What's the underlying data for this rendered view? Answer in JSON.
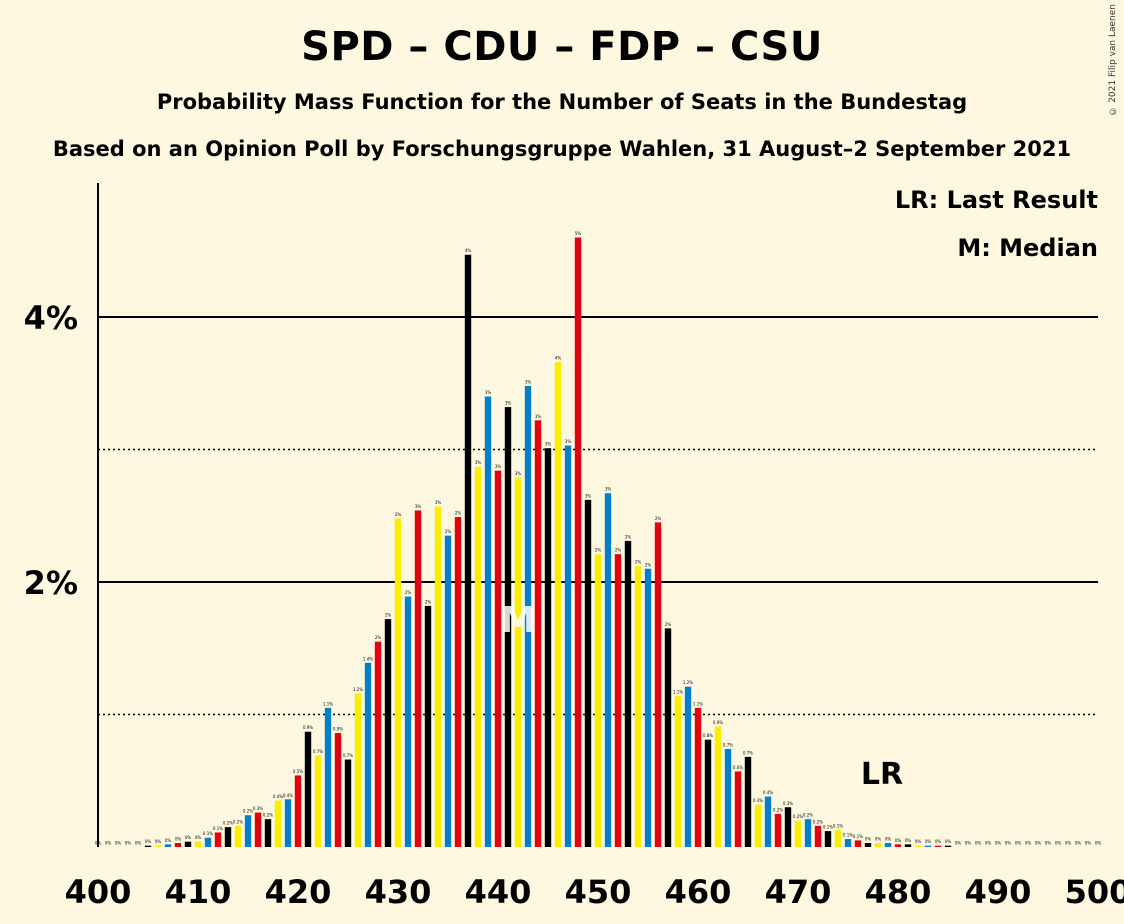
{
  "title": "SPD – CDU – FDP – CSU",
  "subtitle": "Probability Mass Function for the Number of Seats in the Bundestag",
  "subtitle2": "Based on an Opinion Poll by Forschungsgruppe Wahlen, 31 August–2 September 2021",
  "copyright": "© 2021 Filip van Laenen",
  "legend": {
    "last_result": "LR: Last Result",
    "median": "M: Median"
  },
  "markers": {
    "lr_label": "LR",
    "median_label": "M",
    "median_seat": 442,
    "lr_seat": 479
  },
  "colors": {
    "spd": "#E3000F",
    "cdu": "#000000",
    "fdp": "#FFED00",
    "csu": "#0080C8"
  },
  "chart_data": {
    "type": "bar",
    "xlabel": "",
    "ylabel": "",
    "xlim": [
      400,
      500
    ],
    "ylim": [
      0,
      5
    ],
    "x_ticks": [
      400,
      410,
      420,
      430,
      440,
      450,
      460,
      470,
      480,
      490,
      500
    ],
    "y_ticks_labeled": [
      {
        "value": 2,
        "label": "2%"
      },
      {
        "value": 4,
        "label": "4%"
      }
    ],
    "y_minor_dotted": [
      1,
      3
    ],
    "seats": [
      400,
      401,
      402,
      403,
      404,
      405,
      406,
      407,
      408,
      409,
      410,
      411,
      412,
      413,
      414,
      415,
      416,
      417,
      418,
      419,
      420,
      421,
      422,
      423,
      424,
      425,
      426,
      427,
      428,
      429,
      430,
      431,
      432,
      433,
      434,
      435,
      436,
      437,
      438,
      439,
      440,
      441,
      442,
      443,
      444,
      445,
      446,
      447,
      448,
      449,
      450,
      451,
      452,
      453,
      454,
      455,
      456,
      457,
      458,
      459,
      460,
      461,
      462,
      463,
      464,
      465,
      466,
      467,
      468,
      469,
      470,
      471,
      472,
      473,
      474,
      475,
      476,
      477,
      478,
      479,
      480,
      481,
      482,
      483,
      484,
      485,
      486,
      487,
      488,
      489,
      490,
      491,
      492,
      493,
      494,
      495,
      496,
      497,
      498,
      499,
      500
    ],
    "values": [
      0,
      0,
      0,
      0,
      0,
      0.01,
      0.01,
      0.02,
      0.03,
      0.04,
      0.04,
      0.07,
      0.11,
      0.15,
      0.16,
      0.24,
      0.26,
      0.21,
      0.35,
      0.36,
      0.54,
      0.87,
      0.69,
      1.05,
      0.86,
      0.66,
      1.16,
      1.39,
      1.55,
      1.72,
      2.48,
      1.89,
      2.54,
      1.82,
      2.57,
      2.35,
      2.49,
      4.47,
      2.87,
      3.4,
      2.84,
      3.32,
      2.79,
      3.48,
      3.22,
      3.01,
      3.66,
      3.03,
      4.6,
      2.62,
      2.21,
      2.67,
      2.21,
      2.31,
      2.12,
      2.1,
      2.45,
      1.65,
      1.14,
      1.21,
      1.05,
      0.81,
      0.91,
      0.74,
      0.57,
      0.68,
      0.32,
      0.38,
      0.25,
      0.3,
      0.2,
      0.21,
      0.16,
      0.12,
      0.13,
      0.06,
      0.05,
      0.03,
      0.03,
      0.03,
      0.02,
      0.02,
      0.01,
      0.01,
      0.01,
      0.01,
      0,
      0,
      0,
      0,
      0,
      0,
      0,
      0,
      0,
      0,
      0,
      0,
      0,
      0,
      0
    ],
    "value_labels": [
      "0%",
      "0%",
      "0%",
      "0%",
      "0%",
      "0%",
      "0%",
      "0%",
      "0%",
      "0%",
      "0%",
      "0.1%",
      "0.1%",
      "0.2%",
      "0.2%",
      "0.2%",
      "0.3%",
      "0.2%",
      "0.4%",
      "0.4%",
      "0.5%",
      "0.9%",
      "0.7%",
      "1.1%",
      "0.9%",
      "0.7%",
      "1.2%",
      "1.4%",
      "2%",
      "2%",
      "2%",
      "2%",
      "3%",
      "2%",
      "3%",
      "2%",
      "2%",
      "4%",
      "3%",
      "3%",
      "3%",
      "3%",
      "3%",
      "3%",
      "3%",
      "3%",
      "4%",
      "3%",
      "5%",
      "3%",
      "2%",
      "3%",
      "2%",
      "2%",
      "2%",
      "2%",
      "2%",
      "2%",
      "1.1%",
      "1.2%",
      "1.1%",
      "0.8%",
      "0.9%",
      "0.7%",
      "0.6%",
      "0.7%",
      "0.3%",
      "0.4%",
      "0.2%",
      "0.3%",
      "0.2%",
      "0.2%",
      "0.2%",
      "0.1%",
      "0.1%",
      "0.1%",
      "0.1%",
      "0%",
      "0%",
      "0%",
      "0%",
      "0%",
      "0%",
      "0%",
      "0%",
      "0%",
      "0%",
      "0%",
      "0%",
      "0%",
      "0%",
      "0%",
      "0%",
      "0%",
      "0%",
      "0%",
      "0%",
      "0%",
      "0%",
      "0%",
      "0%"
    ]
  }
}
